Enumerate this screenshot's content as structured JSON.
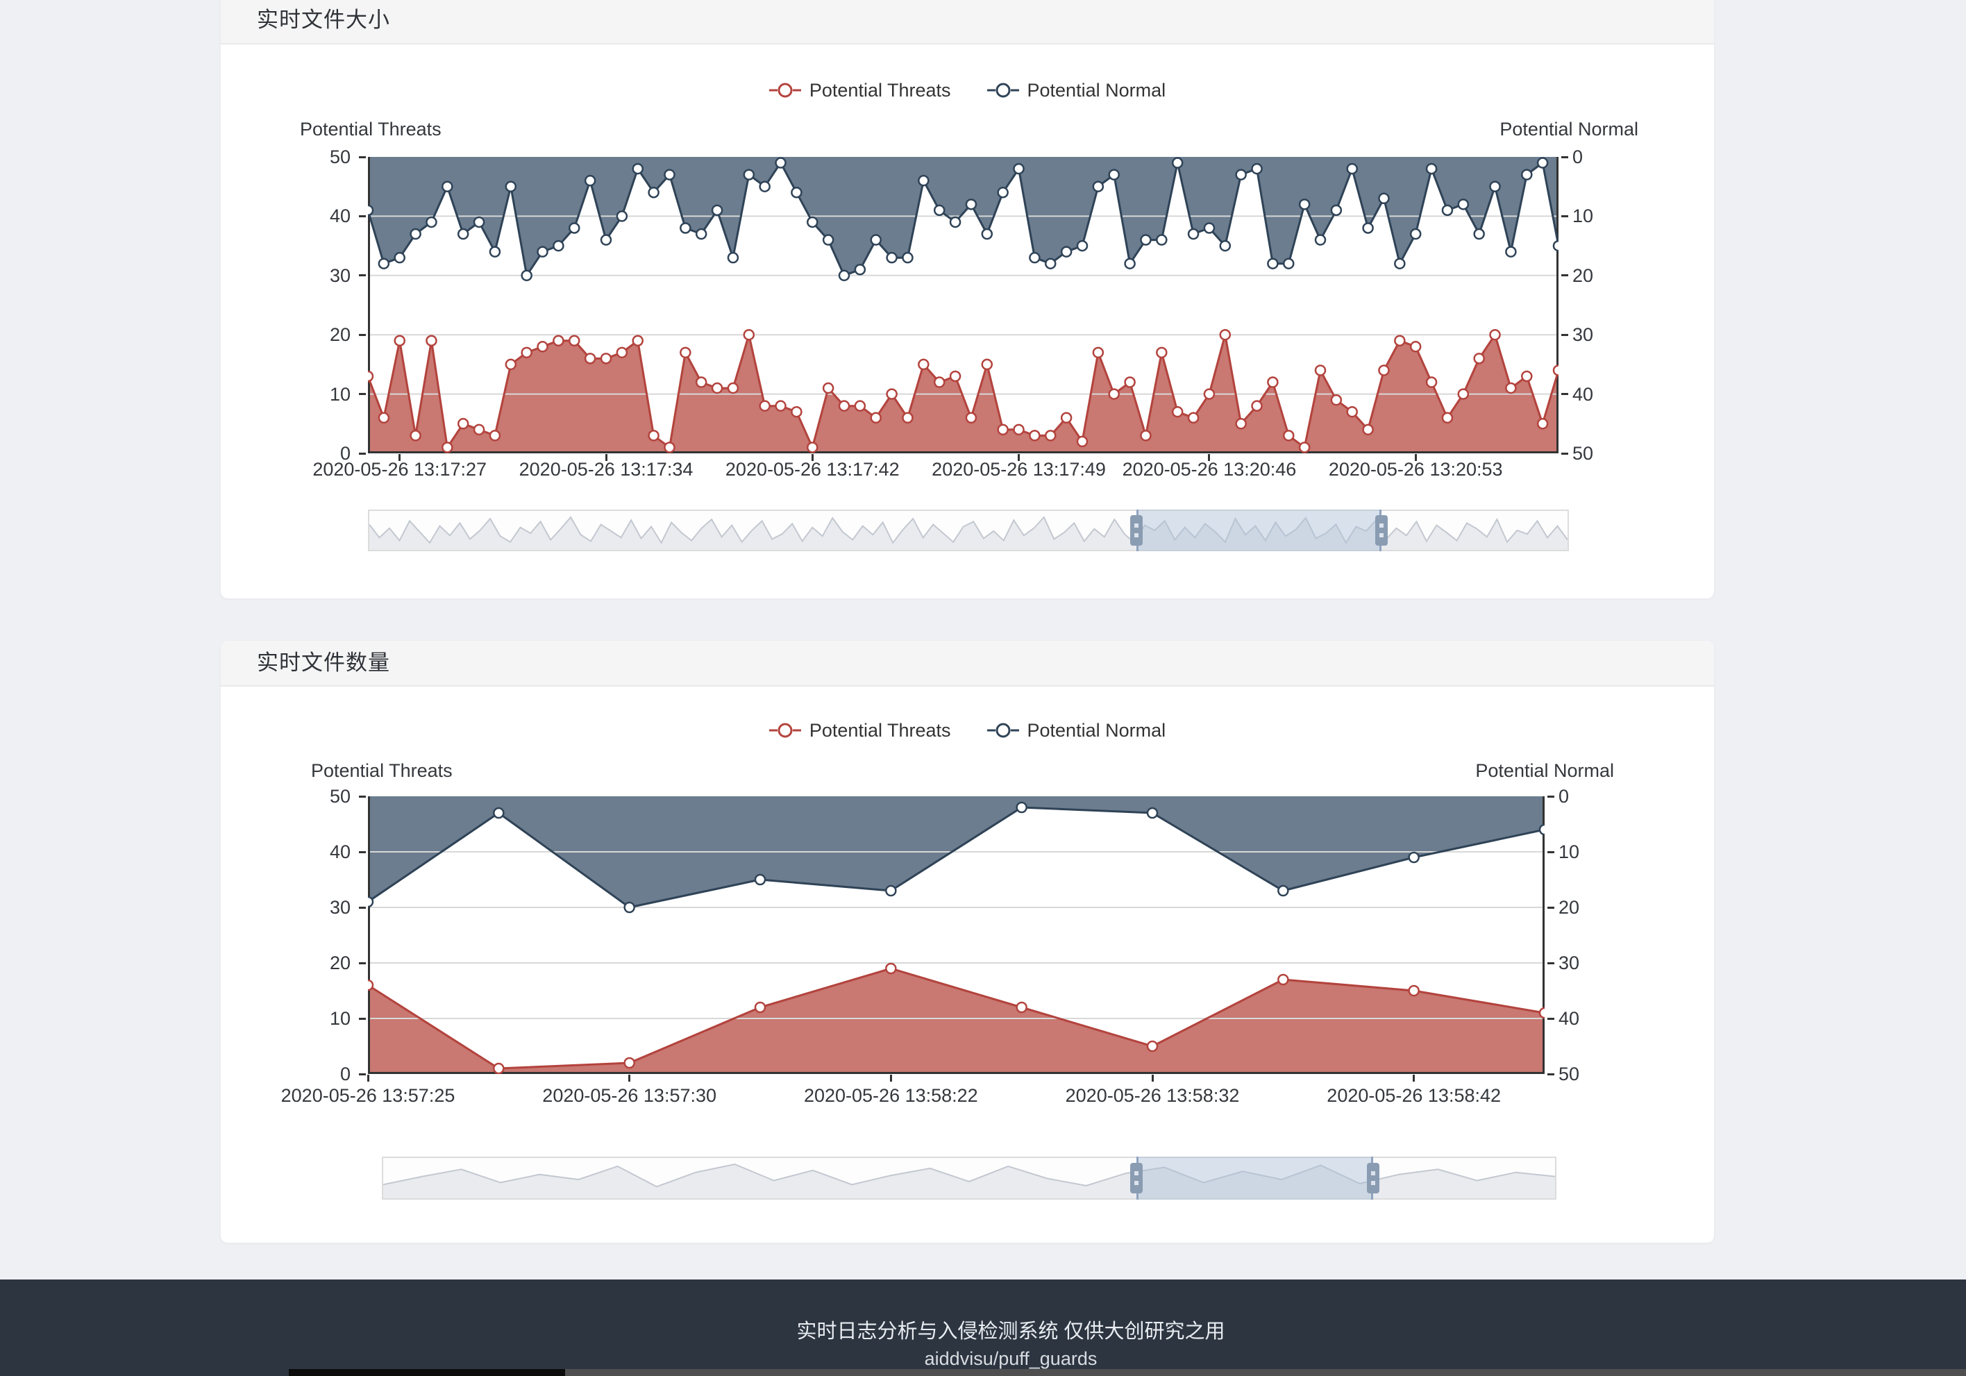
{
  "panels": [
    {
      "title": "实时文件大小",
      "legend": [
        {
          "label": "Potential Threats"
        },
        {
          "label": "Potential Normal"
        }
      ],
      "left_axis_name": "Potential Threats",
      "right_axis_name": "Potential Normal",
      "left_ticks": [
        "50",
        "40",
        "30",
        "20",
        "10",
        "0"
      ],
      "right_ticks": [
        "0",
        "10",
        "20",
        "30",
        "40",
        "50"
      ]
    },
    {
      "title": "实时文件数量",
      "legend": [
        {
          "label": "Potential Threats"
        },
        {
          "label": "Potential Normal"
        }
      ],
      "left_axis_name": "Potential Threats",
      "right_axis_name": "Potential Normal",
      "left_ticks": [
        "50",
        "40",
        "30",
        "20",
        "10",
        "0"
      ],
      "right_ticks": [
        "0",
        "10",
        "20",
        "30",
        "40",
        "50"
      ]
    }
  ],
  "footer": {
    "line1": "实时日志分析与入侵检测系统 仅供大创研究之用",
    "line2": "aiddvisu/puff_guards"
  },
  "colors": {
    "threats_line": "#b3433d",
    "threats_fill": "#c97872",
    "normal_line": "#2f4357",
    "normal_fill": "#6b7d8e",
    "grid": "#d8d8d8",
    "axis": "#333333",
    "slider_fill": "#e9ebef",
    "slider_line": "#c3c8d0",
    "slider_window": "rgba(170,190,214,0.45)",
    "slider_window_border": "#8fa3bf",
    "slider_handle": "#8a9cb2",
    "footer_bg": "#2d3541",
    "page_bg": "#eef0f4"
  },
  "chart_data": [
    {
      "type": "area",
      "title": "实时文件大小",
      "legend_position": "top-center",
      "grid": true,
      "x_tick_labels": [
        "2020-05-26 13:17:27",
        "2020-05-26 13:17:34",
        "2020-05-26 13:17:42",
        "2020-05-26 13:17:49",
        "2020-05-26 13:20:46",
        "2020-05-26 13:20:53"
      ],
      "x_tick_indices": [
        2,
        15,
        28,
        41,
        53,
        66
      ],
      "left_axis": {
        "name": "Potential Threats",
        "range": [
          0,
          50
        ]
      },
      "right_axis": {
        "name": "Potential Normal",
        "range": [
          0,
          50
        ],
        "inverted": true
      },
      "series": [
        {
          "name": "Potential Threats",
          "axis": "left",
          "values": [
            13,
            6,
            19,
            3,
            19,
            1,
            5,
            4,
            3,
            15,
            17,
            18,
            19,
            19,
            16,
            16,
            17,
            19,
            3,
            1,
            17,
            12,
            11,
            11,
            20,
            8,
            8,
            7,
            1,
            11,
            8,
            8,
            6,
            10,
            6,
            15,
            12,
            13,
            6,
            15,
            4,
            4,
            3,
            3,
            6,
            2,
            17,
            10,
            12,
            3,
            17,
            7,
            6,
            10,
            20,
            5,
            8,
            12,
            3,
            1,
            14,
            9,
            7,
            4,
            14,
            19,
            18,
            12,
            6,
            10,
            16,
            20,
            11,
            13,
            5,
            14
          ]
        },
        {
          "name": "Potential Normal",
          "axis": "right_inverted",
          "values": [
            9,
            18,
            17,
            13,
            11,
            5,
            13,
            11,
            16,
            5,
            20,
            16,
            15,
            12,
            4,
            14,
            10,
            2,
            6,
            3,
            12,
            13,
            9,
            17,
            3,
            5,
            1,
            6,
            11,
            14,
            20,
            19,
            14,
            17,
            17,
            4,
            9,
            11,
            8,
            13,
            6,
            2,
            17,
            18,
            16,
            15,
            5,
            3,
            18,
            14,
            14,
            1,
            13,
            12,
            15,
            3,
            2,
            18,
            18,
            8,
            14,
            9,
            2,
            12,
            7,
            18,
            13,
            2,
            9,
            8,
            13,
            5,
            16,
            3,
            1,
            15
          ]
        }
      ],
      "datazoom": {
        "window_start": 0.64,
        "window_end": 0.845,
        "preview": [
          30,
          12,
          25,
          8,
          35,
          20,
          5,
          28,
          15,
          32,
          10,
          22,
          38,
          14,
          6,
          26,
          18,
          34,
          9,
          24,
          40,
          16,
          7,
          30,
          21,
          12,
          36,
          11,
          27,
          5,
          33,
          19,
          8,
          25,
          37,
          13,
          29,
          6,
          22,
          35,
          10,
          17,
          31,
          7,
          26,
          14,
          39,
          20,
          9,
          28,
          16,
          33,
          5,
          23,
          38,
          12,
          30,
          18,
          6,
          27,
          34,
          11,
          21,
          8,
          36,
          15,
          25,
          40,
          10,
          19,
          32,
          7,
          24,
          13,
          37,
          17,
          5,
          29,
          22,
          35,
          9,
          26,
          12,
          31,
          20,
          6,
          38,
          16,
          28,
          8,
          33,
          14,
          23,
          39,
          11,
          18,
          30,
          5,
          27,
          21,
          36,
          10,
          25,
          15,
          34,
          7,
          29,
          19,
          8,
          32,
          24,
          13,
          37,
          6,
          22,
          17,
          35,
          12,
          28,
          9
        ]
      }
    },
    {
      "type": "area",
      "title": "实时文件数量",
      "legend_position": "top-center",
      "grid": true,
      "x_tick_labels": [
        "2020-05-26 13:57:25",
        "2020-05-26 13:57:30",
        "2020-05-26 13:58:22",
        "2020-05-26 13:58:32",
        "2020-05-26 13:58:42"
      ],
      "x_tick_indices": [
        0,
        2,
        4,
        6,
        8
      ],
      "left_axis": {
        "name": "Potential Threats",
        "range": [
          0,
          50
        ]
      },
      "right_axis": {
        "name": "Potential Normal",
        "range": [
          0,
          50
        ],
        "inverted": true
      },
      "series": [
        {
          "name": "Potential Threats",
          "axis": "left",
          "values": [
            16,
            1,
            2,
            12,
            19,
            12,
            5,
            17,
            15,
            11
          ]
        },
        {
          "name": "Potential Normal",
          "axis": "right_inverted",
          "values": [
            19,
            3,
            20,
            15,
            17,
            2,
            3,
            17,
            11,
            6
          ]
        }
      ],
      "datazoom": {
        "window_start": 0.643,
        "window_end": 0.845,
        "preview": [
          10,
          18,
          25,
          12,
          20,
          15,
          28,
          8,
          22,
          30,
          14,
          24,
          10,
          19,
          26,
          13,
          28,
          16,
          9,
          21,
          27,
          12,
          23,
          15,
          29,
          11,
          20,
          25,
          14,
          22,
          18
        ]
      }
    }
  ]
}
